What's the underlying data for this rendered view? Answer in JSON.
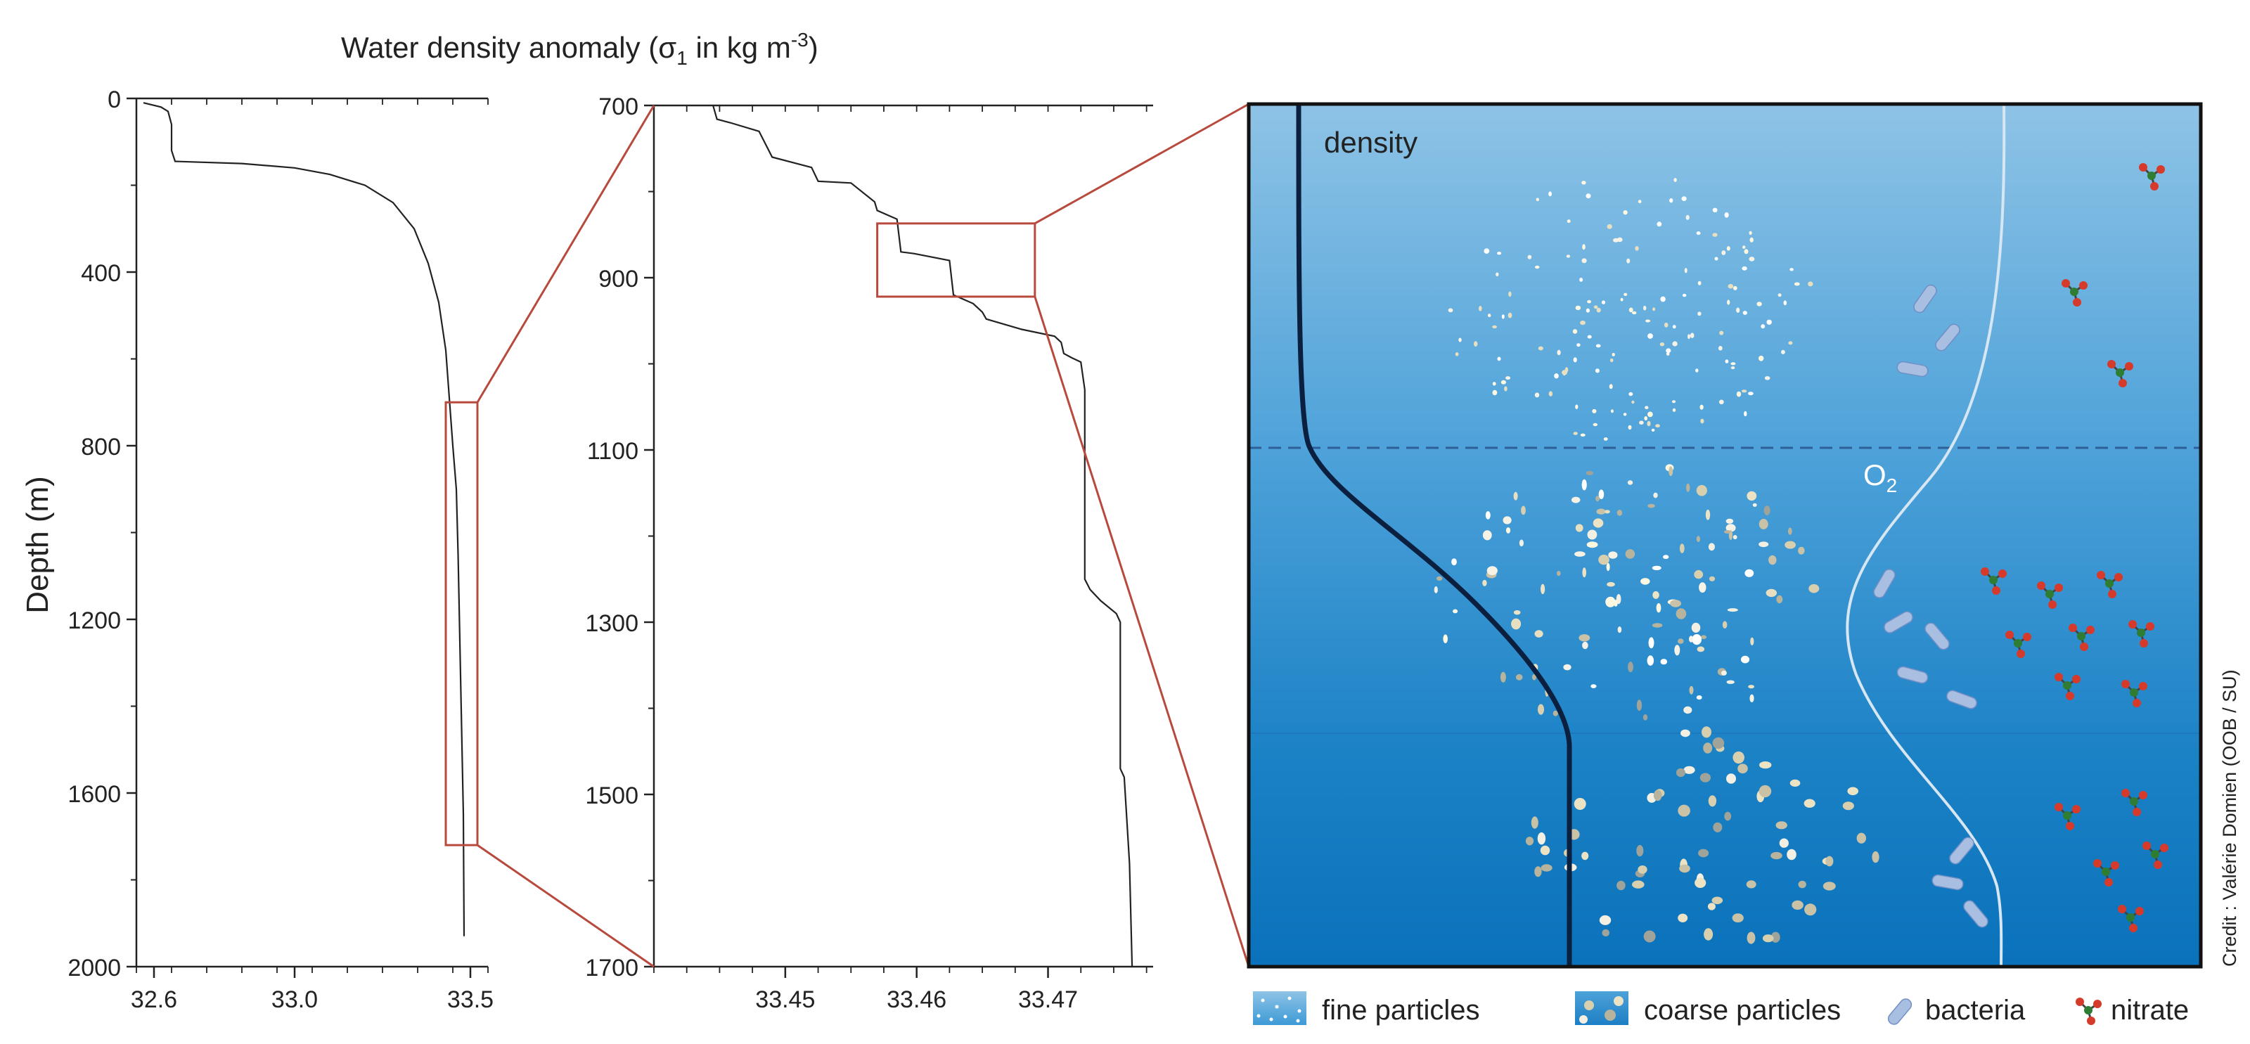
{
  "title": {
    "prefix": "Water density anomaly (",
    "sigma": "σ",
    "sub": "1",
    "middle": " in kg m",
    "sup": "-3",
    "suffix": ")"
  },
  "ylabel": "Depth (m)",
  "credit": "Credit : Valérie Domien (OOB / SU)",
  "chart_data": [
    {
      "type": "line",
      "name": "full-profile",
      "xlim": [
        32.55,
        33.55
      ],
      "ylim": [
        0,
        2000
      ],
      "xticks": [
        32.6,
        33.0,
        33.5
      ],
      "xtick_labels": [
        "32.6",
        "33.0",
        "33.5"
      ],
      "yticks": [
        0,
        400,
        800,
        1200,
        1600,
        2000
      ],
      "ytick_labels": [
        "0",
        "400",
        "800",
        "1200",
        "1600",
        "2000"
      ],
      "series": [
        {
          "points": [
            [
              32.57,
              10
            ],
            [
              32.62,
              20
            ],
            [
              32.64,
              30
            ],
            [
              32.65,
              60
            ],
            [
              32.65,
              120
            ],
            [
              32.66,
              145
            ],
            [
              32.85,
              150
            ],
            [
              33.0,
              160
            ],
            [
              33.1,
              175
            ],
            [
              33.2,
              200
            ],
            [
              33.28,
              240
            ],
            [
              33.34,
              300
            ],
            [
              33.38,
              380
            ],
            [
              33.41,
              470
            ],
            [
              33.43,
              580
            ],
            [
              33.44,
              690
            ],
            [
              33.45,
              800
            ],
            [
              33.46,
              900
            ],
            [
              33.465,
              1050
            ],
            [
              33.47,
              1250
            ],
            [
              33.475,
              1450
            ],
            [
              33.48,
              1650
            ],
            [
              33.482,
              1930
            ]
          ]
        }
      ],
      "zoom_box": {
        "x": [
          33.43,
          33.52
        ],
        "y": [
          700,
          1720
        ]
      }
    },
    {
      "type": "line",
      "name": "zoomed-profile",
      "xlim": [
        33.44,
        33.478
      ],
      "ylim": [
        700,
        1700
      ],
      "xticks": [
        33.45,
        33.46,
        33.47
      ],
      "xtick_labels": [
        "33.45",
        "33.46",
        "33.47"
      ],
      "yticks": [
        700,
        900,
        1100,
        1300,
        1500,
        1700
      ],
      "ytick_labels": [
        "700",
        "900",
        "1100",
        "1300",
        "1500",
        "1700"
      ],
      "series": [
        {
          "points": [
            [
              33.4445,
              700
            ],
            [
              33.4448,
              716
            ],
            [
              33.4458,
              720
            ],
            [
              33.448,
              730
            ],
            [
              33.449,
              760
            ],
            [
              33.452,
              772
            ],
            [
              33.4525,
              788
            ],
            [
              33.455,
              790
            ],
            [
              33.4568,
              812
            ],
            [
              33.457,
              822
            ],
            [
              33.4585,
              832
            ],
            [
              33.4588,
              870
            ],
            [
              33.4598,
              872
            ],
            [
              33.4625,
              880
            ],
            [
              33.4628,
              920
            ],
            [
              33.4643,
              930
            ],
            [
              33.465,
              940
            ],
            [
              33.4653,
              948
            ],
            [
              33.468,
              960
            ],
            [
              33.4705,
              968
            ],
            [
              33.471,
              975
            ],
            [
              33.4712,
              988
            ],
            [
              33.4718,
              993
            ],
            [
              33.4725,
              998
            ],
            [
              33.4728,
              1030
            ],
            [
              33.4728,
              1250
            ],
            [
              33.4732,
              1262
            ],
            [
              33.474,
              1275
            ],
            [
              33.4752,
              1290
            ],
            [
              33.4755,
              1300
            ],
            [
              33.4755,
              1470
            ],
            [
              33.4758,
              1480
            ],
            [
              33.4762,
              1580
            ],
            [
              33.4764,
              1700
            ]
          ]
        }
      ],
      "zoom_box": {
        "x": [
          33.457,
          33.469
        ],
        "y": [
          837,
          922
        ]
      }
    }
  ],
  "schematic": {
    "density_label": "density",
    "oxygen_label": "O",
    "oxygen_sub": "2",
    "colors": {
      "water_top": "#8ec3e6",
      "water_bottom": "#0a72bb",
      "density_line": "#0b1f3f",
      "oxygen_line": "#d6e6f2",
      "zoom_lines": "#b74a3c",
      "bacteria": "#a9bfe2",
      "nitrate_red": "#d63a2a",
      "nitrate_green": "#2e7d32"
    }
  },
  "legend": {
    "fine": "fine   particles",
    "coarse": "coarse particles",
    "bacteria": "bacteria",
    "nitrate": "nitrate"
  }
}
